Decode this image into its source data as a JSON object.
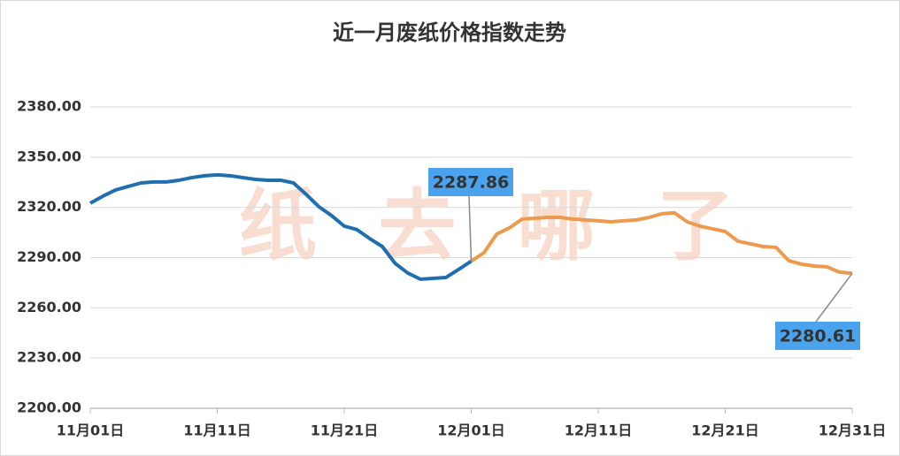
{
  "chart_data": {
    "type": "line",
    "title": "近一月废纸价格指数走势",
    "watermark": "纸去哪了",
    "categories": [
      "11月01日",
      null,
      null,
      null,
      null,
      null,
      null,
      null,
      null,
      null,
      "11月11日",
      null,
      null,
      null,
      null,
      null,
      null,
      null,
      null,
      null,
      "11月21日",
      null,
      null,
      null,
      null,
      null,
      null,
      null,
      null,
      null,
      "12月01日",
      null,
      null,
      null,
      null,
      null,
      null,
      null,
      null,
      null,
      "12月11日",
      null,
      null,
      null,
      null,
      null,
      null,
      null,
      null,
      null,
      "12月21日",
      null,
      null,
      null,
      null,
      null,
      null,
      null,
      null,
      null,
      "12月31日"
    ],
    "series": [
      {
        "color": "#1f6fb0",
        "values": [
          2322.5,
          2326.7,
          2330.4,
          2332.5,
          2334.6,
          2335.2,
          2335.2,
          2336.2,
          2337.8,
          2338.9,
          2339.4,
          2338.9,
          2337.8,
          2336.7,
          2336.2,
          2336.2,
          2334.6,
          2327.8,
          2320.4,
          2315.1,
          2308.8,
          2306.7,
          2301.4,
          2296.6,
          2286.6,
          2280.8,
          2277.1,
          2277.6,
          2278.1,
          2282.9,
          2287.86,
          null,
          null,
          null,
          null,
          null,
          null,
          null,
          null,
          null,
          null,
          null,
          null,
          null,
          null,
          null,
          null,
          null,
          null,
          null,
          null,
          null,
          null,
          null,
          null,
          null,
          null,
          null,
          null,
          null,
          null
        ]
      },
      {
        "color": "#ee9a4d",
        "values": [
          null,
          null,
          null,
          null,
          null,
          null,
          null,
          null,
          null,
          null,
          null,
          null,
          null,
          null,
          null,
          null,
          null,
          null,
          null,
          null,
          null,
          null,
          null,
          null,
          null,
          null,
          null,
          null,
          null,
          null,
          2287.86,
          2292.9,
          2304,
          2307.7,
          2313,
          2313.5,
          2314,
          2314,
          2313,
          2312.5,
          2312,
          2311.4,
          2312,
          2312.5,
          2314,
          2316.2,
          2316.7,
          2311.4,
          2308.8,
          2307.2,
          2305.6,
          2299.8,
          2298.2,
          2296.6,
          2296.1,
          2288.2,
          2286.1,
          2285,
          2284.5,
          2281.3,
          2280.61
        ]
      }
    ],
    "ylim": [
      2200,
      2380
    ],
    "yticks": [
      {
        "value": 2200,
        "label": "2200.00"
      },
      {
        "value": 2230,
        "label": "2230.00"
      },
      {
        "value": 2260,
        "label": "2260.00"
      },
      {
        "value": 2290,
        "label": "2290.00"
      },
      {
        "value": 2320,
        "label": "2320.00"
      },
      {
        "value": 2350,
        "label": "2350.00"
      },
      {
        "value": 2380,
        "label": "2380.00"
      }
    ],
    "grid": true
  }
}
